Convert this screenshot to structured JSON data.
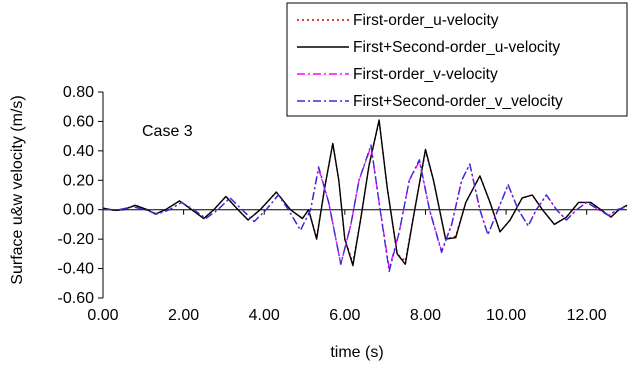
{
  "chart_data": {
    "type": "line",
    "title": "",
    "xlabel": "time (s)",
    "ylabel": "Surface u&w velocity (m/s)",
    "annotation": "Case 3",
    "xlim": [
      0,
      13
    ],
    "ylim": [
      -0.6,
      0.8
    ],
    "x_ticks": [
      0,
      2,
      4,
      6,
      8,
      10,
      12
    ],
    "x_tick_labels": [
      "0.00",
      "2.00",
      "4.00",
      "6.00",
      "8.00",
      "10.00",
      "12.00"
    ],
    "y_ticks": [
      -0.6,
      -0.4,
      -0.2,
      0.0,
      0.2,
      0.4,
      0.6,
      0.8
    ],
    "y_tick_labels": [
      "-0.60",
      "-0.40",
      "-0.20",
      "0.00",
      "0.20",
      "0.40",
      "0.60",
      "0.80"
    ],
    "grid": false,
    "legend_position": "top-right",
    "series": [
      {
        "name": "First-order_u-velocity",
        "color": "#cc0000",
        "dash": "dotted",
        "points": [
          [
            0,
            0.01
          ],
          [
            0.3,
            -0.005
          ],
          [
            0.5,
            0.0
          ],
          [
            0.8,
            0.03
          ],
          [
            1.1,
            0.0
          ],
          [
            1.3,
            -0.03
          ],
          [
            1.55,
            0.0
          ],
          [
            1.9,
            0.06
          ],
          [
            2.2,
            0.0
          ],
          [
            2.5,
            -0.06
          ],
          [
            2.75,
            0.0
          ],
          [
            3.05,
            0.09
          ],
          [
            3.35,
            0.0
          ],
          [
            3.6,
            -0.07
          ],
          [
            3.9,
            0.0
          ],
          [
            4.3,
            0.12
          ],
          [
            4.65,
            0.0
          ],
          [
            4.95,
            -0.06
          ],
          [
            5.1,
            0.0
          ],
          [
            5.3,
            -0.19
          ],
          [
            5.5,
            0.15
          ],
          [
            5.7,
            0.45
          ],
          [
            5.85,
            0.2
          ],
          [
            6.0,
            -0.2
          ],
          [
            6.2,
            -0.36
          ],
          [
            6.4,
            -0.05
          ],
          [
            6.6,
            0.3
          ],
          [
            6.85,
            0.6
          ],
          [
            7.05,
            0.15
          ],
          [
            7.3,
            -0.3
          ],
          [
            7.5,
            -0.35
          ],
          [
            7.7,
            -0.05
          ],
          [
            8.0,
            0.4
          ],
          [
            8.2,
            0.2
          ],
          [
            8.5,
            -0.2
          ],
          [
            8.75,
            -0.18
          ],
          [
            9.0,
            0.05
          ],
          [
            9.35,
            0.23
          ],
          [
            9.6,
            0.05
          ],
          [
            9.85,
            -0.15
          ],
          [
            10.1,
            -0.07
          ],
          [
            10.4,
            0.08
          ],
          [
            10.65,
            0.1
          ],
          [
            10.9,
            0.0
          ],
          [
            11.2,
            -0.1
          ],
          [
            11.5,
            -0.05
          ],
          [
            11.8,
            0.05
          ],
          [
            12.1,
            0.05
          ],
          [
            12.35,
            0.0
          ],
          [
            12.6,
            -0.05
          ],
          [
            12.8,
            0.0
          ],
          [
            13.0,
            0.03
          ]
        ]
      },
      {
        "name": "First+Second-order_u-velocity",
        "color": "#000000",
        "dash": "solid",
        "points": [
          [
            0,
            0.01
          ],
          [
            0.3,
            -0.005
          ],
          [
            0.5,
            0.0
          ],
          [
            0.8,
            0.03
          ],
          [
            1.1,
            0.0
          ],
          [
            1.3,
            -0.03
          ],
          [
            1.55,
            0.0
          ],
          [
            1.9,
            0.06
          ],
          [
            2.2,
            0.0
          ],
          [
            2.5,
            -0.06
          ],
          [
            2.75,
            0.0
          ],
          [
            3.05,
            0.09
          ],
          [
            3.35,
            0.0
          ],
          [
            3.6,
            -0.07
          ],
          [
            3.9,
            0.0
          ],
          [
            4.3,
            0.12
          ],
          [
            4.65,
            0.0
          ],
          [
            4.95,
            -0.06
          ],
          [
            5.1,
            0.0
          ],
          [
            5.3,
            -0.2
          ],
          [
            5.5,
            0.15
          ],
          [
            5.7,
            0.45
          ],
          [
            5.85,
            0.2
          ],
          [
            6.0,
            -0.2
          ],
          [
            6.2,
            -0.38
          ],
          [
            6.4,
            -0.05
          ],
          [
            6.6,
            0.3
          ],
          [
            6.85,
            0.61
          ],
          [
            7.05,
            0.15
          ],
          [
            7.3,
            -0.3
          ],
          [
            7.5,
            -0.37
          ],
          [
            7.7,
            -0.05
          ],
          [
            8.0,
            0.41
          ],
          [
            8.2,
            0.2
          ],
          [
            8.5,
            -0.2
          ],
          [
            8.75,
            -0.19
          ],
          [
            9.0,
            0.05
          ],
          [
            9.35,
            0.23
          ],
          [
            9.6,
            0.05
          ],
          [
            9.85,
            -0.15
          ],
          [
            10.1,
            -0.07
          ],
          [
            10.4,
            0.08
          ],
          [
            10.65,
            0.1
          ],
          [
            10.9,
            0.0
          ],
          [
            11.2,
            -0.1
          ],
          [
            11.5,
            -0.05
          ],
          [
            11.8,
            0.05
          ],
          [
            12.1,
            0.05
          ],
          [
            12.35,
            0.0
          ],
          [
            12.6,
            -0.05
          ],
          [
            12.8,
            0.0
          ],
          [
            13.0,
            0.03
          ]
        ]
      },
      {
        "name": "First-order_v-velocity",
        "color": "#ff00ff",
        "dash": "dashdot",
        "points": [
          [
            0,
            0.0
          ],
          [
            0.4,
            0.0
          ],
          [
            0.75,
            0.02
          ],
          [
            1.05,
            0.0
          ],
          [
            1.35,
            -0.03
          ],
          [
            1.65,
            0.0
          ],
          [
            1.95,
            0.05
          ],
          [
            2.25,
            0.0
          ],
          [
            2.55,
            -0.06
          ],
          [
            2.85,
            0.0
          ],
          [
            3.15,
            0.08
          ],
          [
            3.45,
            0.0
          ],
          [
            3.75,
            -0.08
          ],
          [
            4.05,
            0.0
          ],
          [
            4.35,
            0.1
          ],
          [
            4.6,
            0.0
          ],
          [
            4.9,
            -0.14
          ],
          [
            5.15,
            0.0
          ],
          [
            5.35,
            0.28
          ],
          [
            5.6,
            0.05
          ],
          [
            5.9,
            -0.37
          ],
          [
            6.15,
            -0.1
          ],
          [
            6.35,
            0.2
          ],
          [
            6.65,
            0.43
          ],
          [
            6.85,
            0.05
          ],
          [
            7.1,
            -0.4
          ],
          [
            7.35,
            -0.15
          ],
          [
            7.6,
            0.2
          ],
          [
            7.85,
            0.33
          ],
          [
            8.1,
            0.0
          ],
          [
            8.4,
            -0.28
          ],
          [
            8.65,
            -0.1
          ],
          [
            8.9,
            0.2
          ],
          [
            9.1,
            0.31
          ],
          [
            9.35,
            0.0
          ],
          [
            9.55,
            -0.17
          ],
          [
            9.8,
            0.0
          ],
          [
            10.05,
            0.17
          ],
          [
            10.3,
            0.0
          ],
          [
            10.55,
            -0.11
          ],
          [
            10.75,
            0.0
          ],
          [
            11.0,
            0.1
          ],
          [
            11.25,
            0.0
          ],
          [
            11.5,
            -0.07
          ],
          [
            11.75,
            0.0
          ],
          [
            12.0,
            0.05
          ],
          [
            12.3,
            0.0
          ],
          [
            12.55,
            -0.04
          ],
          [
            12.75,
            0.0
          ],
          [
            13.0,
            0.02
          ]
        ]
      },
      {
        "name": "First+Second-order_v_velocity",
        "color": "#3333cc",
        "dash": "dashdot",
        "points": [
          [
            0,
            0.0
          ],
          [
            0.4,
            0.0
          ],
          [
            0.75,
            0.02
          ],
          [
            1.05,
            0.0
          ],
          [
            1.35,
            -0.03
          ],
          [
            1.65,
            0.0
          ],
          [
            1.95,
            0.05
          ],
          [
            2.25,
            0.0
          ],
          [
            2.55,
            -0.06
          ],
          [
            2.85,
            0.0
          ],
          [
            3.15,
            0.08
          ],
          [
            3.45,
            0.0
          ],
          [
            3.75,
            -0.08
          ],
          [
            4.05,
            0.0
          ],
          [
            4.35,
            0.1
          ],
          [
            4.6,
            0.0
          ],
          [
            4.9,
            -0.14
          ],
          [
            5.15,
            0.0
          ],
          [
            5.35,
            0.29
          ],
          [
            5.6,
            0.05
          ],
          [
            5.9,
            -0.37
          ],
          [
            6.15,
            -0.1
          ],
          [
            6.35,
            0.2
          ],
          [
            6.65,
            0.44
          ],
          [
            6.85,
            0.05
          ],
          [
            7.1,
            -0.42
          ],
          [
            7.35,
            -0.15
          ],
          [
            7.6,
            0.2
          ],
          [
            7.85,
            0.34
          ],
          [
            8.1,
            0.0
          ],
          [
            8.4,
            -0.29
          ],
          [
            8.65,
            -0.1
          ],
          [
            8.9,
            0.2
          ],
          [
            9.1,
            0.31
          ],
          [
            9.35,
            0.0
          ],
          [
            9.55,
            -0.17
          ],
          [
            9.8,
            0.0
          ],
          [
            10.05,
            0.17
          ],
          [
            10.3,
            0.0
          ],
          [
            10.55,
            -0.11
          ],
          [
            10.75,
            0.0
          ],
          [
            11.0,
            0.1
          ],
          [
            11.25,
            0.0
          ],
          [
            11.5,
            -0.07
          ],
          [
            11.75,
            0.0
          ],
          [
            12.0,
            0.05
          ],
          [
            12.3,
            0.0
          ],
          [
            12.55,
            -0.04
          ],
          [
            12.75,
            0.0
          ],
          [
            13.0,
            0.02
          ]
        ]
      }
    ]
  }
}
